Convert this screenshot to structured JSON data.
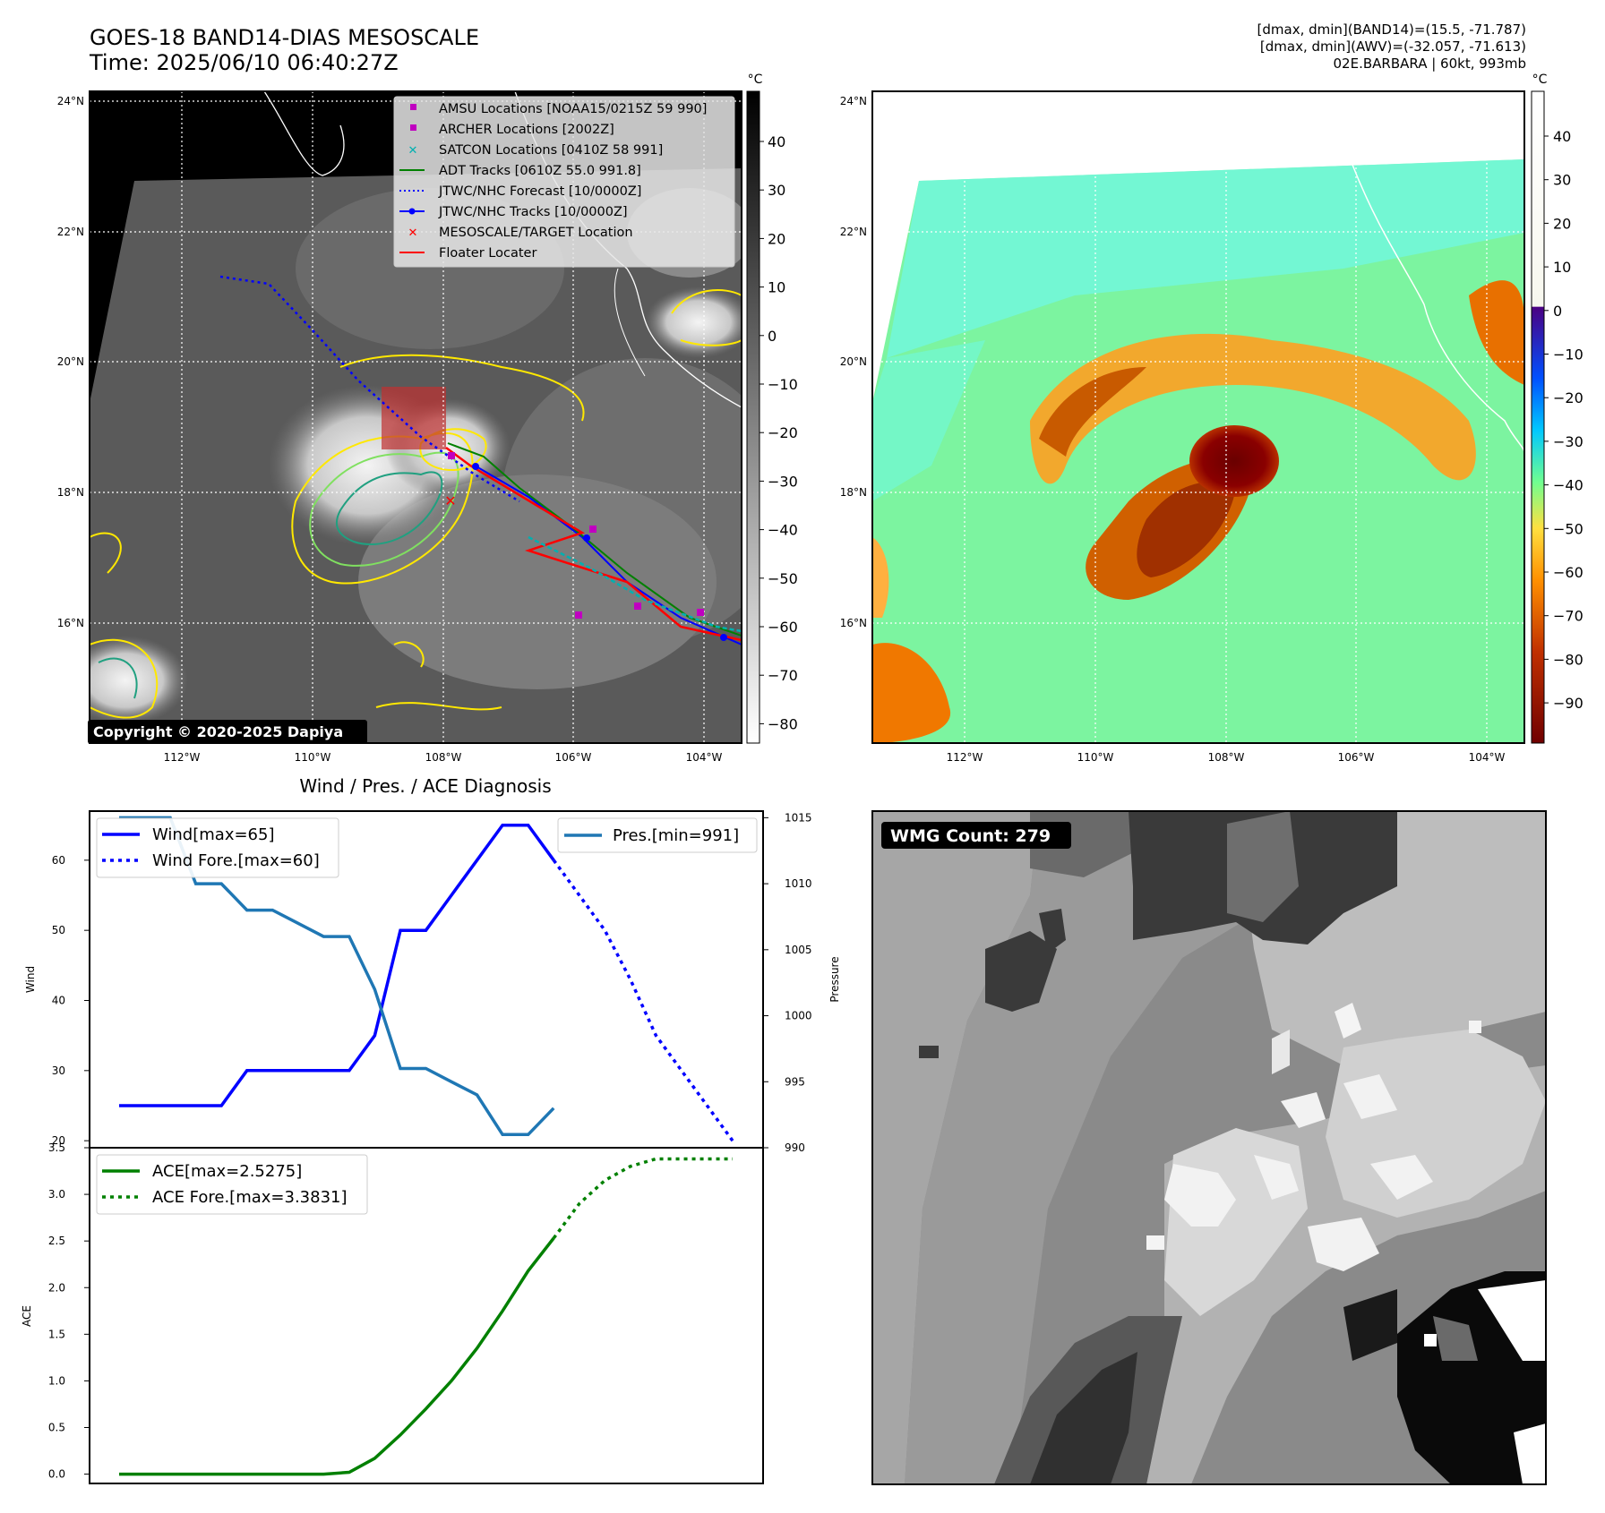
{
  "header": {
    "title_line1": "GOES-18 BAND14-DIAS MESOSCALE",
    "title_line2": "Time: 2025/06/10 06:40:27Z",
    "info_line1": "[dmax, dmin](BAND14)=(15.5, -71.787)",
    "info_line2": "[dmax, dmin](AWV)=(-32.057, -71.613)",
    "info_line3": "02E.BARBARA | 60kt, 993mb"
  },
  "map_axes": {
    "lat_labels": [
      "24°N",
      "22°N",
      "20°N",
      "18°N",
      "16°N"
    ],
    "lon_labels": [
      "112°W",
      "110°W",
      "108°W",
      "106°W",
      "104°W"
    ]
  },
  "ir_colorbar": {
    "unit": "°C",
    "ticks": [
      "40",
      "30",
      "20",
      "10",
      "0",
      "−10",
      "−20",
      "−30",
      "−40",
      "−50",
      "−60",
      "−70",
      "−80"
    ]
  },
  "awv_colorbar": {
    "unit": "°C",
    "ticks": [
      "40",
      "30",
      "20",
      "10",
      "0",
      "−10",
      "−20",
      "−30",
      "−40",
      "−50",
      "−60",
      "−70",
      "−80",
      "−90"
    ]
  },
  "legend": {
    "items": [
      {
        "label": "AMSU Locations [NOAA15/0215Z 59 990]",
        "color": "#c000c0",
        "marker": "square"
      },
      {
        "label": "ARCHER Locations [2002Z]",
        "color": "#c000c0",
        "marker": "square"
      },
      {
        "label": "SATCON Locations [0410Z 58 991]",
        "color": "#00b0b0",
        "marker": "x"
      },
      {
        "label": "ADT Tracks [0610Z 55.0 991.8]",
        "color": "#008000",
        "marker": "line"
      },
      {
        "label": "JTWC/NHC Forecast [10/0000Z]",
        "color": "#0000ff",
        "marker": "dotted"
      },
      {
        "label": "JTWC/NHC Tracks [10/0000Z]",
        "color": "#0000ff",
        "marker": "line-dot"
      },
      {
        "label": "MESOSCALE/TARGET Location",
        "color": "#ff0000",
        "marker": "x"
      },
      {
        "label": "Floater Locater",
        "color": "#ff0000",
        "marker": "line"
      }
    ]
  },
  "copyright": "Copyright © 2020-2025 Dapiya",
  "wmg_label": "WMG Count: 279",
  "chart_data": [
    {
      "type": "line",
      "title": "Wind / Pres. / ACE Diagnosis",
      "ylabel": "Wind",
      "y2label": "Pressure",
      "ylim": [
        19,
        67
      ],
      "y2lim": [
        990,
        1015.5
      ],
      "yticks": [
        "20",
        "30",
        "40",
        "50",
        "60"
      ],
      "y2ticks": [
        "990",
        "995",
        "1000",
        "1005",
        "1010",
        "1015"
      ],
      "legend_left": [
        "Wind[max=65]",
        "Wind Fore.[max=60]"
      ],
      "legend_right": [
        "Pres.[min=991]"
      ],
      "series": [
        {
          "name": "Wind[max=65]",
          "color": "#0000ff",
          "style": "solid",
          "axis": "left",
          "x": [
            0,
            3,
            4,
            5,
            6,
            7,
            8,
            9,
            10,
            11,
            12,
            13,
            14,
            15,
            16,
            17
          ],
          "values": [
            25,
            25,
            25,
            30,
            30,
            30,
            30,
            30,
            35,
            50,
            50,
            55,
            60,
            65,
            65,
            60
          ]
        },
        {
          "name": "Wind Fore.[max=60]",
          "color": "#0000ff",
          "style": "dotted",
          "axis": "left",
          "x": [
            17,
            18,
            19,
            20,
            21,
            22,
            23,
            24
          ],
          "values": [
            60,
            55,
            50,
            43,
            35,
            30,
            25,
            20
          ]
        },
        {
          "name": "Pres.[min=991]",
          "color": "#1f77b4",
          "style": "solid",
          "axis": "right",
          "x": [
            0,
            2,
            3,
            4,
            5,
            6,
            7,
            8,
            9,
            10,
            11,
            12,
            13,
            14,
            15,
            16,
            17
          ],
          "values": [
            1015,
            1015,
            1010,
            1010,
            1008,
            1008,
            1007,
            1006,
            1006,
            1002,
            996,
            996,
            995,
            994,
            991,
            991,
            993
          ]
        }
      ]
    },
    {
      "type": "line",
      "ylabel": "ACE",
      "ylim": [
        -0.1,
        3.5
      ],
      "yticks": [
        "0.0",
        "0.5",
        "1.0",
        "1.5",
        "2.0",
        "2.5",
        "3.0",
        "3.5"
      ],
      "legend_left": [
        "ACE[max=2.5275]",
        "ACE Fore.[max=3.3831]"
      ],
      "series": [
        {
          "name": "ACE[max=2.5275]",
          "color": "#008000",
          "style": "solid",
          "x": [
            0,
            4,
            8,
            9,
            10,
            11,
            12,
            13,
            14,
            15,
            16,
            17
          ],
          "values": [
            0,
            0,
            0,
            0.02,
            0.17,
            0.42,
            0.7,
            1.0,
            1.35,
            1.75,
            2.18,
            2.53
          ]
        },
        {
          "name": "ACE Fore.[max=3.3831]",
          "color": "#008000",
          "style": "dotted",
          "x": [
            17,
            18,
            19,
            20,
            21,
            22,
            23,
            24
          ],
          "values": [
            2.53,
            2.9,
            3.15,
            3.3,
            3.38,
            3.38,
            3.38,
            3.38
          ]
        }
      ]
    }
  ]
}
